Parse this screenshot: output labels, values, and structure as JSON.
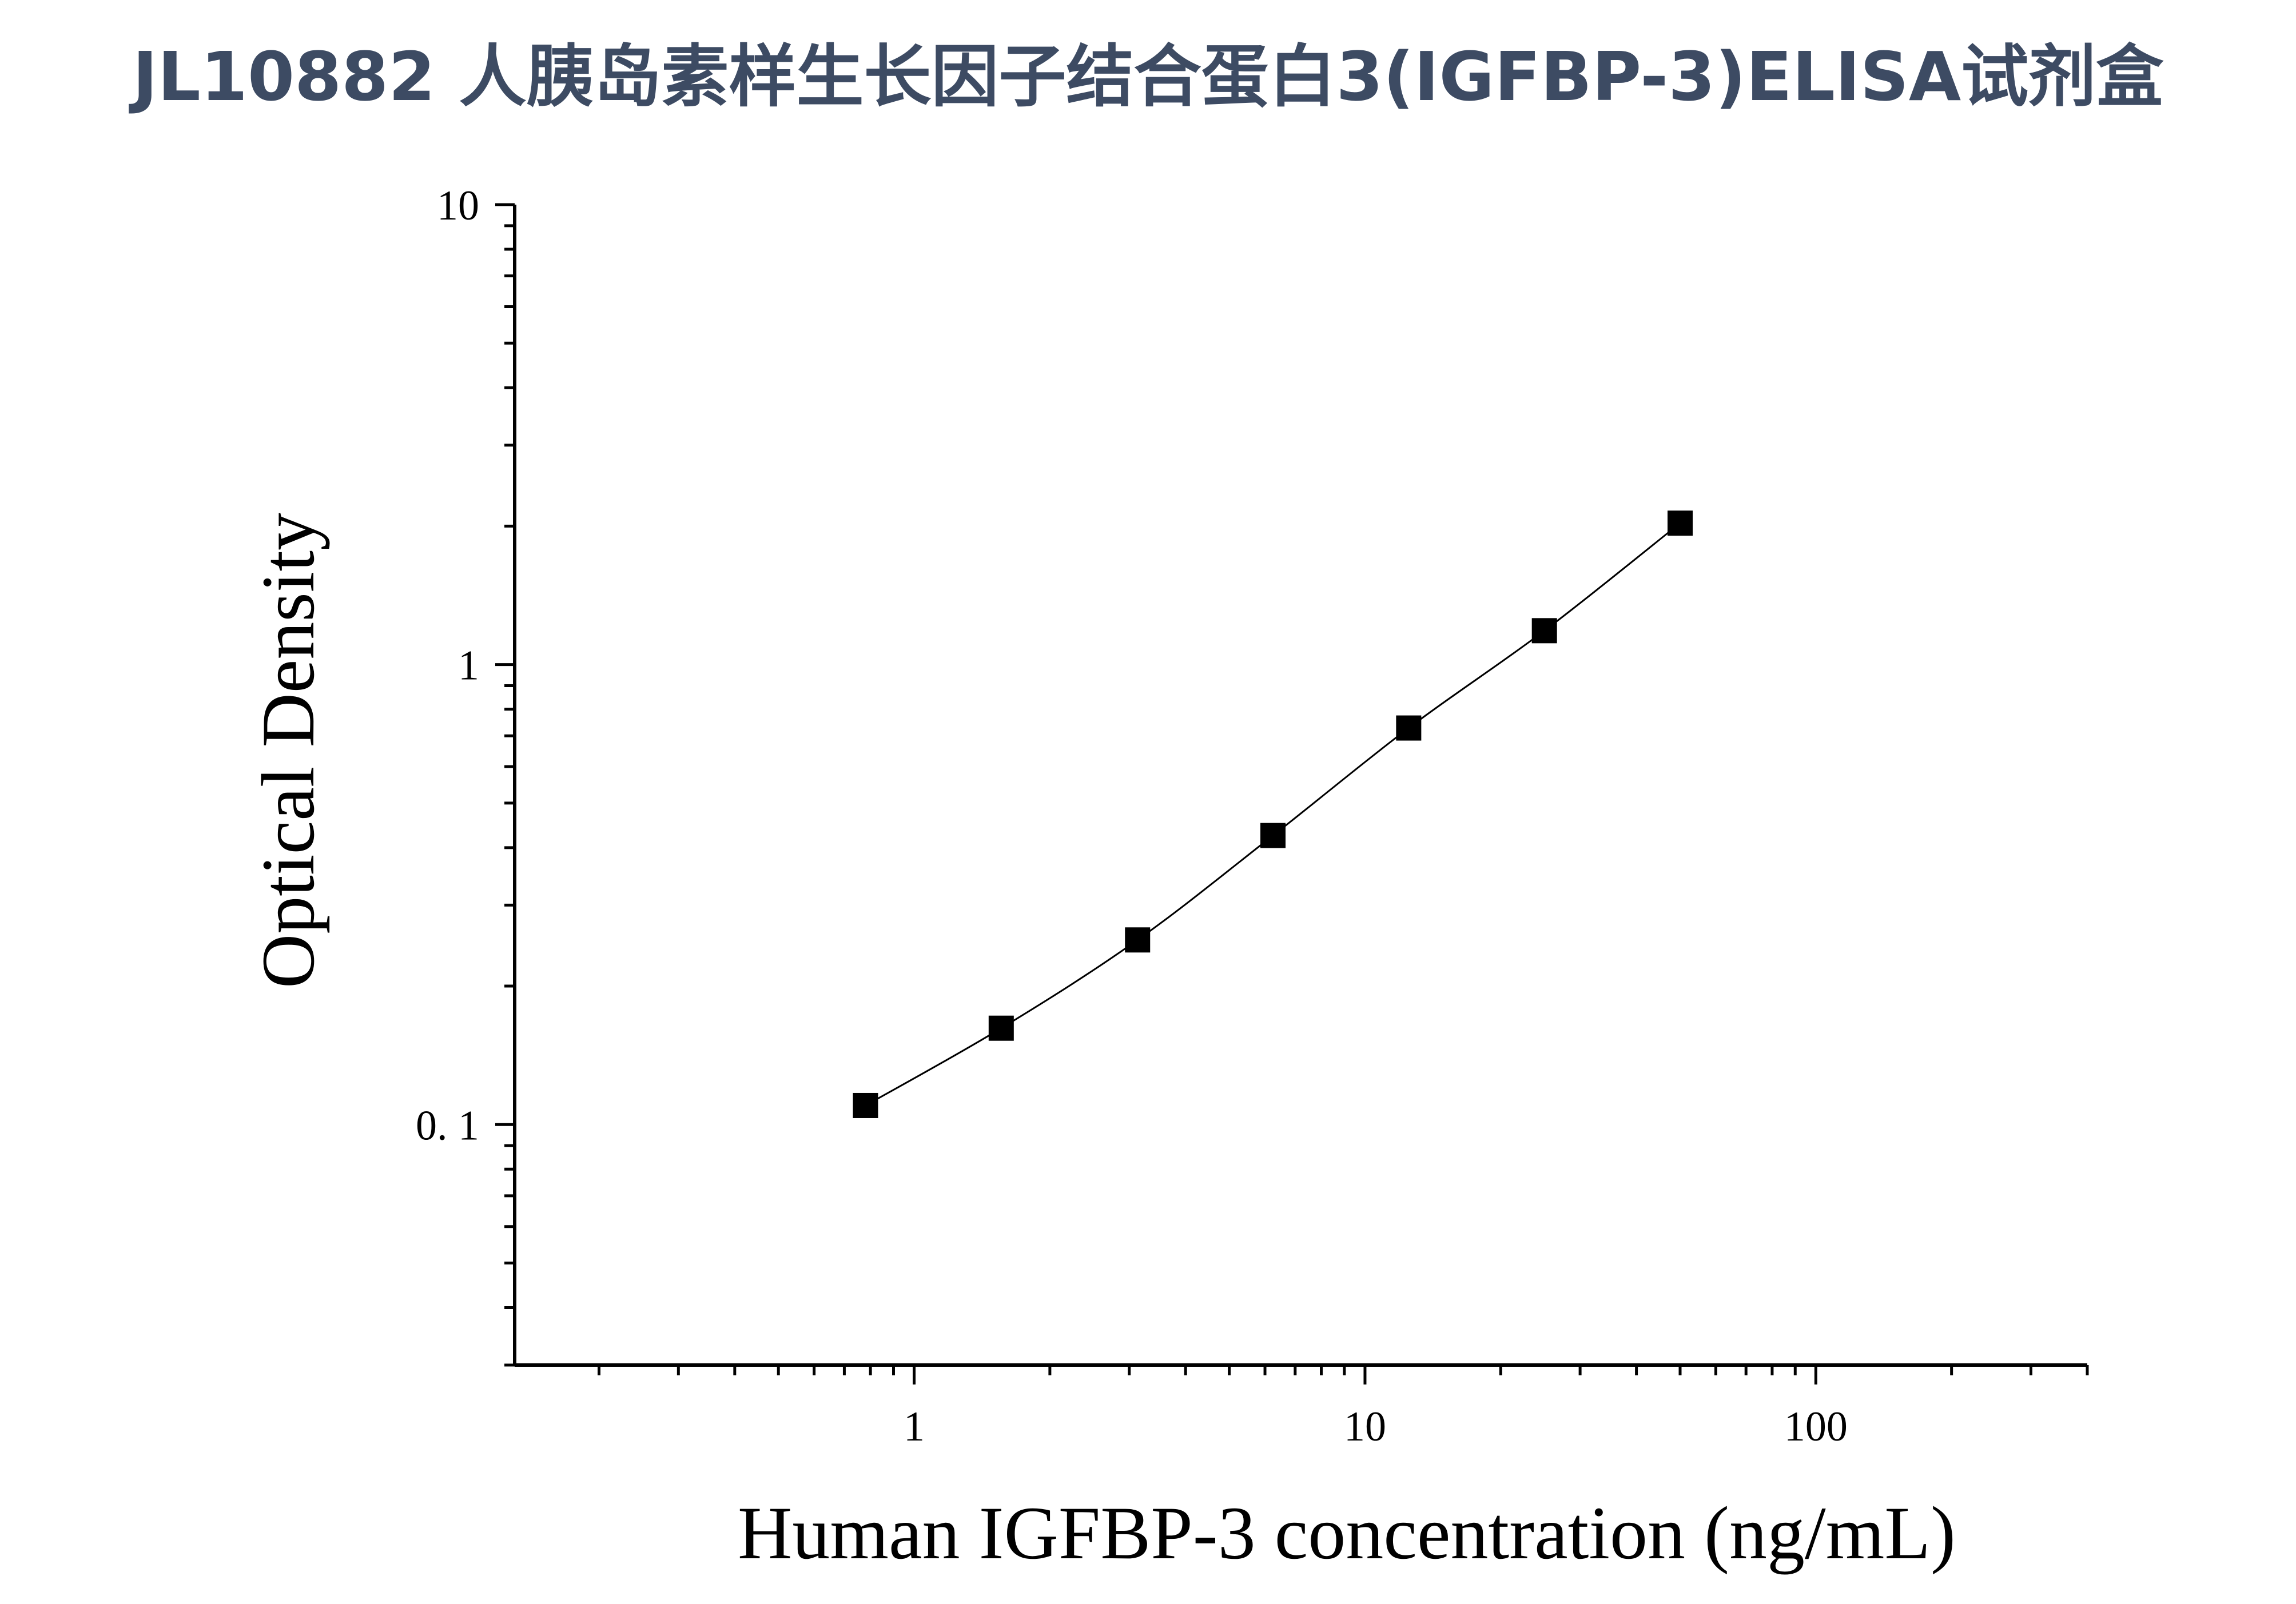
{
  "title": "JL10882 人胰岛素样生长因子结合蛋白3(IGFBP-3)ELISA试剂盒",
  "colors": {
    "title": "#3d4b63",
    "axis": "#000000",
    "marker": "#000000",
    "line": "#000000"
  },
  "chart_data": {
    "type": "scatter",
    "title": "",
    "xlabel": "Human IGFBP-3 concentration (ng/mL)",
    "ylabel": "Optical Density",
    "xscale": "log",
    "yscale": "log",
    "xlim": [
      0.13,
      400
    ],
    "ylim": [
      0.03,
      10
    ],
    "xticks": [
      1,
      10,
      100
    ],
    "xtick_labels": [
      "1",
      "10",
      "100"
    ],
    "yticks": [
      0.1,
      1,
      10
    ],
    "ytick_labels": [
      "0. 1",
      "1",
      "10"
    ],
    "grid": false,
    "legend": "none",
    "marker": "square",
    "fit_line": true,
    "series": [
      {
        "x": [
          0.78,
          1.56,
          3.13,
          6.25,
          12.5,
          25,
          50
        ],
        "y": [
          0.11,
          0.162,
          0.252,
          0.425,
          0.728,
          1.185,
          2.03
        ]
      }
    ]
  }
}
